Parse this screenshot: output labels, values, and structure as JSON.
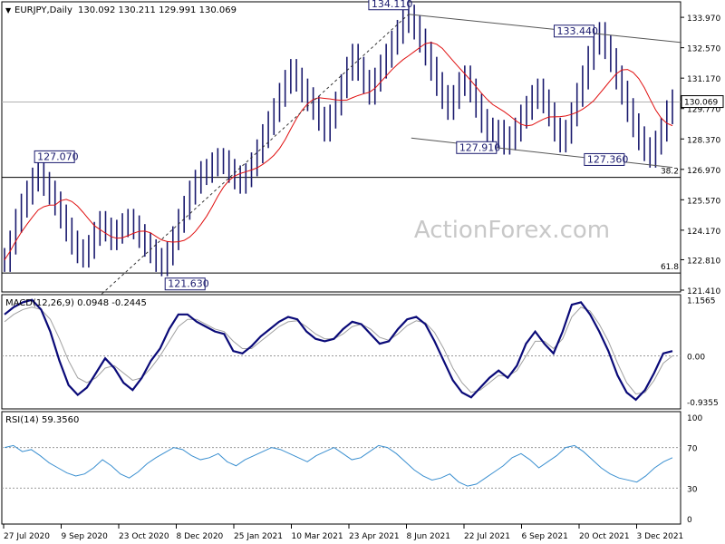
{
  "chart_data": {
    "type": "line",
    "header": {
      "symbol": "EURJPY,Daily",
      "ohlc": "130.092 130.211 129.991 130.069"
    },
    "watermark": "ActionForex.com",
    "price_panel": {
      "ylim": [
        121.41,
        134.6
      ],
      "y_ticks": [
        "133.970",
        "132.570",
        "131.170",
        "129.770",
        "128.370",
        "126.970",
        "125.570",
        "124.170",
        "122.810",
        "121.410"
      ],
      "last_price": "130.069",
      "ma_color": "#e01010",
      "price_color": "#1a1a6e",
      "close_series": [
        122.8,
        123.6,
        124.6,
        125.3,
        125.9,
        126.5,
        127.0,
        126.3,
        125.9,
        125.4,
        124.8,
        124.2,
        123.6,
        123.2,
        123.0,
        123.4,
        124.0,
        124.5,
        124.2,
        123.8,
        124.1,
        124.4,
        124.6,
        124.3,
        123.9,
        123.5,
        123.2,
        122.8,
        122.6,
        123.1,
        123.8,
        124.6,
        125.2,
        125.9,
        126.4,
        126.8,
        126.9,
        127.2,
        127.4,
        127.3,
        126.9,
        126.6,
        126.4,
        126.7,
        127.2,
        127.8,
        128.5,
        129.1,
        129.7,
        130.4,
        131.0,
        131.5,
        131.1,
        130.6,
        130.2,
        129.8,
        129.3,
        128.8,
        129.4,
        130.0,
        130.8,
        131.6,
        132.2,
        131.6,
        131.0,
        130.5,
        131.1,
        131.7,
        132.2,
        132.8,
        133.3,
        133.8,
        134.0,
        133.5,
        132.9,
        132.3,
        131.6,
        130.9,
        130.3,
        129.8,
        130.3,
        130.9,
        131.2,
        130.6,
        129.9,
        129.2,
        128.8,
        128.5,
        128.7,
        128.2,
        128.4,
        128.8,
        129.4,
        129.8,
        130.3,
        130.6,
        130.1,
        129.5,
        128.8,
        128.3,
        128.7,
        129.5,
        130.4,
        131.2,
        132.1,
        132.8,
        133.2,
        132.6,
        132.0,
        131.2,
        130.5,
        129.7,
        129.0,
        128.4,
        127.9,
        127.6,
        128.2,
        128.8,
        129.6,
        130.1
      ]
    },
    "price_annotations": [
      {
        "text": "134.110",
        "date_index": 72,
        "price": 134.11
      },
      {
        "text": "133.440",
        "date_index": 106,
        "price": 133.44
      },
      {
        "text": "127.070",
        "date_index": 6,
        "price": 127.07
      },
      {
        "text": "127.910",
        "date_index": 87,
        "price": 127.91
      },
      {
        "text": "127.360",
        "date_index": 113,
        "price": 127.36
      },
      {
        "text": "121.630",
        "date_index": 27,
        "price": 121.63
      }
    ],
    "fib_levels": [
      {
        "label": "38.2",
        "price": 126.6
      },
      {
        "label": "61.8",
        "price": 122.2
      }
    ],
    "horizontal_line_price": 130.069,
    "macd_panel": {
      "label": "MACD(12,26,9) 0.0948 -0.2445",
      "ylim": [
        -1.05,
        1.2
      ],
      "y_ticks": [
        "1.1565",
        "0.00",
        "-0.9355"
      ],
      "macd_color": "#0a0a78",
      "signal_color": "#a0a0a0",
      "macd": [
        0.85,
        1.0,
        1.1,
        1.15,
        0.95,
        0.5,
        -0.1,
        -0.6,
        -0.8,
        -0.65,
        -0.35,
        -0.05,
        -0.25,
        -0.55,
        -0.7,
        -0.45,
        -0.1,
        0.15,
        0.55,
        0.85,
        0.85,
        0.7,
        0.6,
        0.5,
        0.45,
        0.1,
        0.05,
        0.2,
        0.4,
        0.55,
        0.7,
        0.8,
        0.75,
        0.5,
        0.35,
        0.3,
        0.35,
        0.55,
        0.7,
        0.65,
        0.45,
        0.25,
        0.3,
        0.55,
        0.75,
        0.8,
        0.65,
        0.3,
        -0.1,
        -0.5,
        -0.75,
        -0.85,
        -0.65,
        -0.45,
        -0.3,
        -0.45,
        -0.2,
        0.25,
        0.5,
        0.25,
        0.05,
        0.5,
        1.05,
        1.1,
        0.85,
        0.5,
        0.1,
        -0.4,
        -0.75,
        -0.9,
        -0.7,
        -0.35,
        0.05,
        0.1
      ],
      "signal": [
        0.7,
        0.85,
        0.95,
        1.0,
        0.95,
        0.75,
        0.35,
        -0.1,
        -0.45,
        -0.55,
        -0.45,
        -0.25,
        -0.2,
        -0.35,
        -0.5,
        -0.45,
        -0.25,
        0.0,
        0.3,
        0.6,
        0.75,
        0.75,
        0.65,
        0.55,
        0.5,
        0.3,
        0.15,
        0.15,
        0.3,
        0.45,
        0.6,
        0.7,
        0.72,
        0.6,
        0.45,
        0.35,
        0.35,
        0.45,
        0.6,
        0.65,
        0.55,
        0.38,
        0.32,
        0.45,
        0.62,
        0.72,
        0.68,
        0.48,
        0.15,
        -0.25,
        -0.55,
        -0.75,
        -0.7,
        -0.55,
        -0.4,
        -0.42,
        -0.3,
        0.0,
        0.3,
        0.3,
        0.15,
        0.35,
        0.8,
        1.0,
        0.92,
        0.65,
        0.3,
        -0.15,
        -0.55,
        -0.78,
        -0.75,
        -0.5,
        -0.15,
        0.0
      ]
    },
    "rsi_panel": {
      "label": "RSI(14) 59.3560",
      "ylim": [
        0,
        100
      ],
      "y_ticks": [
        "100",
        "70",
        "30",
        "0"
      ],
      "levels": [
        70,
        30
      ],
      "color": "#3a8fd0",
      "values": [
        70,
        72,
        66,
        68,
        62,
        55,
        50,
        45,
        42,
        44,
        50,
        58,
        52,
        44,
        40,
        46,
        54,
        60,
        65,
        70,
        68,
        62,
        58,
        60,
        64,
        56,
        52,
        58,
        62,
        66,
        70,
        68,
        64,
        60,
        56,
        62,
        66,
        70,
        64,
        58,
        60,
        66,
        72,
        70,
        64,
        56,
        48,
        42,
        38,
        40,
        44,
        36,
        32,
        34,
        40,
        46,
        52,
        60,
        64,
        58,
        50,
        56,
        62,
        70,
        72,
        66,
        58,
        50,
        44,
        40,
        38,
        36,
        42,
        50,
        56,
        60
      ]
    },
    "x_labels": [
      "27 Jul 2020",
      "9 Sep 2020",
      "23 Oct 2020",
      "8 Dec 2020",
      "25 Jan 2021",
      "10 Mar 2021",
      "23 Apr 2021",
      "8 Jun 2021",
      "22 Jul 2021",
      "6 Sep 2021",
      "20 Oct 2021",
      "3 Dec 2021"
    ]
  }
}
